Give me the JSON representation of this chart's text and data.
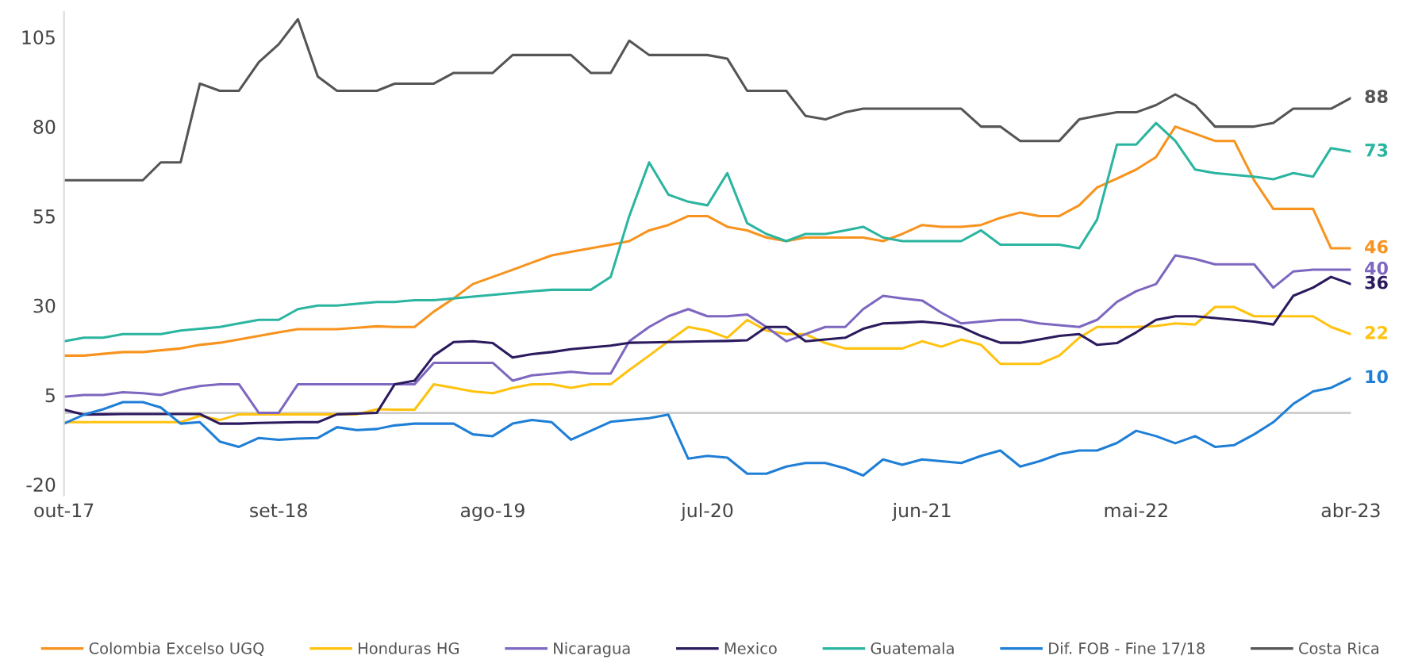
{
  "chart_data": {
    "type": "line",
    "x": [
      "2017-10",
      "2017-11",
      "2017-12",
      "2018-01",
      "2018-02",
      "2018-03",
      "2018-04",
      "2018-05",
      "2018-06",
      "2018-07",
      "2018-08",
      "2018-09",
      "2018-10",
      "2018-11",
      "2018-12",
      "2019-01",
      "2019-02",
      "2019-03",
      "2019-04",
      "2019-05",
      "2019-06",
      "2019-07",
      "2019-08",
      "2019-09",
      "2019-10",
      "2019-11",
      "2019-12",
      "2020-01",
      "2020-02",
      "2020-03",
      "2020-04",
      "2020-05",
      "2020-06",
      "2020-07",
      "2020-08",
      "2020-09",
      "2020-10",
      "2020-11",
      "2020-12",
      "2021-01",
      "2021-02",
      "2021-03",
      "2021-04",
      "2021-05",
      "2021-06",
      "2021-07",
      "2021-08",
      "2021-09",
      "2021-10",
      "2021-11",
      "2021-12",
      "2022-01",
      "2022-02",
      "2022-03",
      "2022-04",
      "2022-05",
      "2022-06",
      "2022-07",
      "2022-08",
      "2022-09",
      "2022-10",
      "2022-11",
      "2022-12",
      "2023-01",
      "2023-02",
      "2023-03",
      "2023-04"
    ],
    "series": [
      {
        "name": "Colombia Excelso UGQ",
        "color": "#f7931e",
        "values": [
          16,
          16,
          16.5,
          17,
          17,
          17.5,
          18,
          19,
          19.6,
          20.5,
          21.5,
          22.5,
          23.4,
          23.4,
          23.4,
          23.8,
          24.2,
          24,
          24,
          28.3,
          32,
          36,
          38,
          40,
          42,
          44,
          45,
          46,
          47,
          48,
          51,
          52.5,
          55,
          55,
          52,
          51,
          49,
          48,
          49,
          49,
          49,
          49,
          48,
          50,
          52.5,
          52,
          52,
          52.5,
          54.5,
          56,
          55,
          55,
          58,
          63,
          65.5,
          68,
          71.5,
          80,
          78,
          76,
          76,
          65,
          57,
          57,
          57,
          46,
          46
        ],
        "value_labels": [
          null,
          null,
          null,
          null,
          null,
          null,
          null,
          null,
          null,
          null,
          null,
          null,
          null,
          null,
          null,
          null,
          null,
          null,
          null,
          null,
          null,
          null,
          null,
          null,
          null,
          null,
          null,
          null,
          null,
          null,
          null,
          null,
          null,
          null,
          null,
          null,
          null,
          null,
          null,
          null,
          null,
          null,
          null,
          null,
          null,
          null,
          null,
          null,
          null,
          null,
          null,
          null,
          null,
          null,
          null,
          null,
          null,
          null,
          null,
          null,
          null,
          null,
          null,
          null,
          null,
          null,
          "46"
        ]
      },
      {
        "name": "Honduras HG",
        "color": "#ffc20e",
        "values": [
          -2.6,
          -2.6,
          -2.6,
          -2.6,
          -2.6,
          -2.6,
          -2.6,
          -0.8,
          -2,
          -0.4,
          -0.4,
          -0.4,
          -0.4,
          -0.4,
          -0.4,
          -0.4,
          1,
          0.9,
          0.9,
          8,
          7,
          6,
          5.5,
          7,
          8,
          8,
          7,
          8,
          8,
          12,
          16,
          20,
          24,
          23,
          21,
          26,
          23,
          22,
          22,
          19.5,
          18,
          18,
          18,
          18,
          20,
          18.5,
          20.5,
          19,
          13.7,
          13.7,
          13.7,
          16,
          21,
          24,
          24,
          24,
          24.3,
          25,
          24.7,
          29.6,
          29.6,
          27,
          27,
          27,
          27,
          24,
          22
        ],
        "value_labels": [
          null,
          null,
          null,
          null,
          null,
          null,
          null,
          null,
          null,
          null,
          null,
          null,
          null,
          null,
          null,
          null,
          null,
          null,
          null,
          null,
          null,
          null,
          null,
          null,
          null,
          null,
          null,
          null,
          null,
          null,
          null,
          null,
          null,
          null,
          null,
          null,
          null,
          null,
          null,
          null,
          null,
          null,
          null,
          null,
          null,
          null,
          null,
          null,
          null,
          null,
          null,
          null,
          null,
          null,
          null,
          null,
          null,
          null,
          null,
          null,
          null,
          null,
          null,
          null,
          null,
          null,
          "22"
        ]
      },
      {
        "name": "Nicaragua",
        "color": "#7e67c0",
        "values": [
          4.5,
          5,
          5,
          5.8,
          5.5,
          5,
          6.5,
          7.5,
          8,
          8,
          0,
          0,
          8,
          8,
          8,
          8,
          8,
          8,
          8,
          14,
          14,
          14,
          14,
          9,
          10.5,
          11,
          11.5,
          11,
          11,
          20,
          24,
          27,
          29,
          27,
          27,
          27.5,
          24,
          20,
          22,
          24,
          24,
          29,
          32.7,
          32,
          31.4,
          28,
          25,
          25.5,
          26,
          26,
          25,
          24.5,
          24,
          26,
          31,
          34,
          36,
          44,
          43,
          41.5,
          41.5,
          41.5,
          35,
          39.5,
          40,
          40,
          40
        ],
        "value_labels": [
          null,
          null,
          null,
          null,
          null,
          null,
          null,
          null,
          null,
          null,
          null,
          null,
          null,
          null,
          null,
          null,
          null,
          null,
          null,
          null,
          null,
          null,
          null,
          null,
          null,
          null,
          null,
          null,
          null,
          null,
          null,
          null,
          null,
          null,
          null,
          null,
          null,
          null,
          null,
          null,
          null,
          null,
          null,
          null,
          null,
          null,
          null,
          null,
          null,
          null,
          null,
          null,
          null,
          null,
          null,
          null,
          null,
          null,
          null,
          null,
          null,
          null,
          null,
          null,
          null,
          null,
          "40"
        ]
      },
      {
        "name": "Mexico",
        "color": "#2b1a5e",
        "values": [
          0.9,
          -0.5,
          -0.4,
          -0.3,
          -0.3,
          -0.3,
          -0.3,
          -0.3,
          -3,
          -3,
          -2.8,
          -2.7,
          -2.6,
          -2.6,
          -0.4,
          -0.2,
          0,
          8,
          9,
          16,
          19.8,
          20,
          19.5,
          15.5,
          16.4,
          17,
          17.8,
          18.3,
          18.8,
          19.6,
          19.7,
          19.8,
          19.9,
          20,
          20.1,
          20.3,
          24,
          24,
          20,
          20.5,
          21,
          23.5,
          25,
          25.2,
          25.5,
          25,
          24,
          21.5,
          19.6,
          19.6,
          20.5,
          21.5,
          22,
          19,
          19.5,
          22.5,
          26,
          27,
          27,
          26.5,
          26,
          25.5,
          24.7,
          32.7,
          35,
          38,
          36
        ],
        "value_labels": [
          null,
          null,
          null,
          null,
          null,
          null,
          null,
          null,
          null,
          null,
          null,
          null,
          null,
          null,
          null,
          null,
          null,
          null,
          null,
          null,
          null,
          null,
          null,
          null,
          null,
          null,
          null,
          null,
          null,
          null,
          null,
          null,
          null,
          null,
          null,
          null,
          null,
          null,
          null,
          null,
          null,
          null,
          null,
          null,
          null,
          null,
          null,
          null,
          null,
          null,
          null,
          null,
          null,
          null,
          null,
          null,
          null,
          null,
          null,
          null,
          null,
          null,
          null,
          null,
          null,
          null,
          "36"
        ]
      },
      {
        "name": "Guatemala",
        "color": "#2bb5a0",
        "values": [
          20,
          21,
          21,
          22,
          22,
          22,
          23,
          23.5,
          24,
          25,
          26,
          26,
          29,
          30,
          30,
          30.5,
          31,
          31,
          31.5,
          31.5,
          32,
          32.5,
          33,
          33.5,
          34,
          34.4,
          34.4,
          34.4,
          38,
          55,
          70,
          61,
          59,
          58,
          67,
          53,
          50,
          48,
          50,
          50,
          51,
          52,
          49,
          48,
          48,
          48,
          48,
          51,
          47,
          47,
          47,
          47,
          46,
          54,
          75,
          75,
          81,
          76,
          68,
          67,
          66.5,
          66,
          65.3,
          67,
          66,
          74,
          73
        ],
        "value_labels": [
          null,
          null,
          null,
          null,
          null,
          null,
          null,
          null,
          null,
          null,
          null,
          null,
          null,
          null,
          null,
          null,
          null,
          null,
          null,
          null,
          null,
          null,
          null,
          null,
          null,
          null,
          null,
          null,
          null,
          null,
          null,
          null,
          null,
          null,
          null,
          null,
          null,
          null,
          null,
          null,
          null,
          null,
          null,
          null,
          null,
          null,
          null,
          null,
          null,
          null,
          null,
          null,
          null,
          null,
          null,
          null,
          null,
          null,
          null,
          null,
          null,
          null,
          null,
          null,
          null,
          null,
          "73"
        ]
      },
      {
        "name": "Dif. FOB - Fine 17/18",
        "color": "#1f7fd6",
        "values": [
          -3,
          -0.5,
          1,
          3,
          3,
          1.5,
          -3,
          -2.6,
          -8,
          -9.5,
          -7,
          -7.5,
          -7.2,
          -7,
          -4,
          -4.8,
          -4.5,
          -3.5,
          -3,
          -3,
          -3,
          -6,
          -6.5,
          -3,
          -2,
          -2.6,
          -7.5,
          -5,
          -2.5,
          -2,
          -1.5,
          -0.5,
          -12.8,
          -12,
          -12.5,
          -17,
          -17,
          -15,
          -14,
          -14,
          -15.5,
          -17.5,
          -13,
          -14.5,
          -13,
          -13.5,
          -14,
          -12,
          -10.5,
          -15,
          -13.5,
          -11.5,
          -10.5,
          -10.5,
          -8.4,
          -5,
          -6.5,
          -8.5,
          -6.5,
          -9.5,
          -9,
          -6,
          -2.6,
          2.5,
          6,
          7,
          9.7
        ],
        "value_labels": [
          null,
          null,
          null,
          null,
          null,
          null,
          null,
          null,
          null,
          null,
          null,
          null,
          null,
          null,
          null,
          null,
          null,
          null,
          null,
          null,
          null,
          null,
          null,
          null,
          null,
          null,
          null,
          null,
          null,
          null,
          null,
          null,
          null,
          null,
          null,
          null,
          null,
          null,
          null,
          null,
          null,
          null,
          null,
          null,
          null,
          null,
          null,
          null,
          null,
          null,
          null,
          null,
          null,
          null,
          null,
          null,
          null,
          null,
          null,
          null,
          null,
          null,
          null,
          null,
          null,
          null,
          "10"
        ]
      },
      {
        "name": "Costa Rica",
        "color": "#555555",
        "values": [
          65,
          65,
          65,
          65,
          65,
          70,
          70,
          92,
          90,
          90,
          98,
          103,
          110,
          94,
          90,
          90,
          90,
          92,
          92,
          92,
          95,
          95,
          95,
          100,
          100,
          100,
          100,
          95,
          95,
          104,
          100,
          100,
          100,
          100,
          99,
          90,
          90,
          90,
          83,
          82,
          84,
          85,
          85,
          85,
          85,
          85,
          85,
          80,
          80,
          76,
          76,
          76,
          82,
          83,
          84,
          84,
          86,
          89,
          86,
          80,
          80,
          80,
          81,
          85,
          85,
          85,
          88
        ],
        "value_labels": [
          null,
          null,
          null,
          null,
          null,
          null,
          null,
          null,
          null,
          null,
          null,
          null,
          null,
          null,
          null,
          null,
          null,
          null,
          null,
          null,
          null,
          null,
          null,
          null,
          null,
          null,
          null,
          null,
          null,
          null,
          null,
          null,
          null,
          null,
          null,
          null,
          null,
          null,
          null,
          null,
          null,
          null,
          null,
          null,
          null,
          null,
          null,
          null,
          null,
          null,
          null,
          null,
          null,
          null,
          null,
          null,
          null,
          null,
          null,
          null,
          null,
          null,
          null,
          null,
          null,
          null,
          "88"
        ]
      }
    ],
    "xlim": [
      "2017-10",
      "2023-04"
    ],
    "xticks": [
      {
        "value": "2017-10",
        "label": "out-17"
      },
      {
        "value": "2018-09",
        "label": "set-18"
      },
      {
        "value": "2019-08",
        "label": "ago-19"
      },
      {
        "value": "2020-07",
        "label": "jul-20"
      },
      {
        "value": "2021-06",
        "label": "jun-21"
      },
      {
        "value": "2022-05",
        "label": "mai-22"
      },
      {
        "value": "2023-04",
        "label": "abr-23"
      }
    ],
    "ylim": [
      -23,
      112
    ],
    "yticks": [
      -20,
      5,
      30,
      55,
      80,
      105
    ],
    "ref_lines": [
      {
        "axis": "y",
        "value": 0,
        "color": "#cccccc"
      }
    ],
    "grid": false,
    "legend": "bottom",
    "marker": "none",
    "line_style": "solid"
  }
}
